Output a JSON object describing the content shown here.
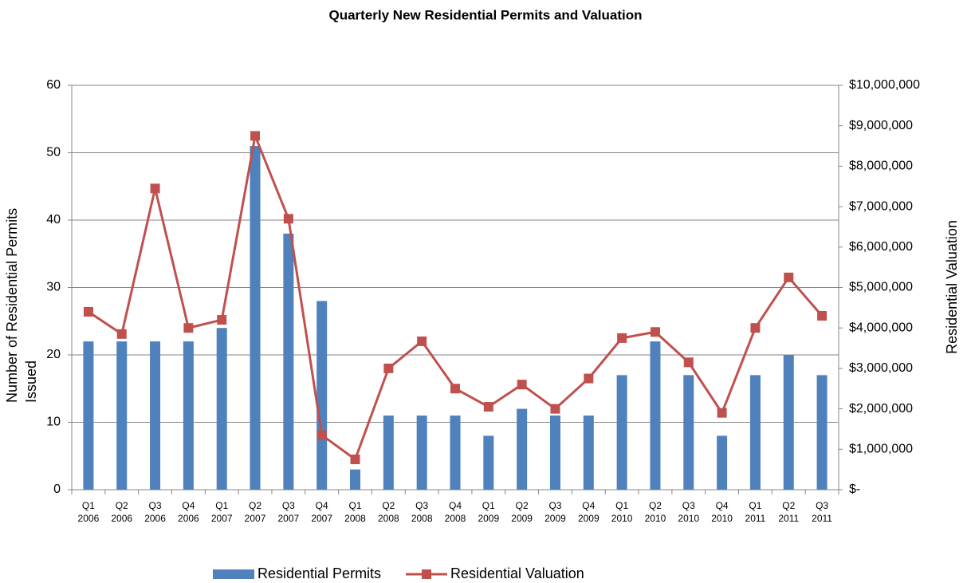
{
  "chart_data": {
    "type": "bar-line",
    "title": "Quarterly New Residential Permits and Valuation",
    "y_label": "Number of Residential Permits Issued",
    "y2_label": "Residential Valuation",
    "categories": [
      "Q1 2006",
      "Q2 2006",
      "Q3 2006",
      "Q4 2006",
      "Q1 2007",
      "Q2 2007",
      "Q3 2007",
      "Q4 2007",
      "Q1 2008",
      "Q2 2008",
      "Q3 2008",
      "Q4 2008",
      "Q1 2009",
      "Q2 2009",
      "Q3 2009",
      "Q4 2009",
      "Q1 2010",
      "Q2 2010",
      "Q3 2010",
      "Q4 2010",
      "Q1 2011",
      "Q2 2011",
      "Q3 2011"
    ],
    "series": [
      {
        "name": "Residential Permits",
        "type": "bar",
        "color": "#4f81bd",
        "values": [
          22,
          22,
          22,
          22,
          24,
          51,
          38,
          28,
          3,
          11,
          11,
          11,
          8,
          12,
          11,
          11,
          17,
          22,
          17,
          8,
          17,
          20,
          17
        ]
      },
      {
        "name": "Residential Valuation",
        "type": "line",
        "axis": "y2",
        "color": "#c0504d",
        "values": [
          4400000,
          3850000,
          7450000,
          4000000,
          4200000,
          8750000,
          6700000,
          1350000,
          750000,
          3000000,
          3670000,
          2500000,
          2050000,
          2600000,
          2000000,
          2750000,
          3750000,
          3900000,
          3150000,
          1900000,
          4000000,
          5250000,
          4300000
        ]
      }
    ],
    "ylim": [
      0,
      60
    ],
    "yticks": [
      0,
      10,
      20,
      30,
      40,
      50,
      60
    ],
    "y2lim": [
      0,
      10000000
    ],
    "y2ticks": [
      {
        "value": 0,
        "label": "$-"
      },
      {
        "value": 1000000,
        "label": "$1,000,000"
      },
      {
        "value": 2000000,
        "label": "$2,000,000"
      },
      {
        "value": 3000000,
        "label": "$3,000,000"
      },
      {
        "value": 4000000,
        "label": "$4,000,000"
      },
      {
        "value": 5000000,
        "label": "$5,000,000"
      },
      {
        "value": 6000000,
        "label": "$6,000,000"
      },
      {
        "value": 7000000,
        "label": "$7,000,000"
      },
      {
        "value": 8000000,
        "label": "$8,000,000"
      },
      {
        "value": 9000000,
        "label": "$9,000,000"
      },
      {
        "value": 10000000,
        "label": "$10,000,000"
      }
    ],
    "grid": true,
    "legend": "bottom"
  }
}
